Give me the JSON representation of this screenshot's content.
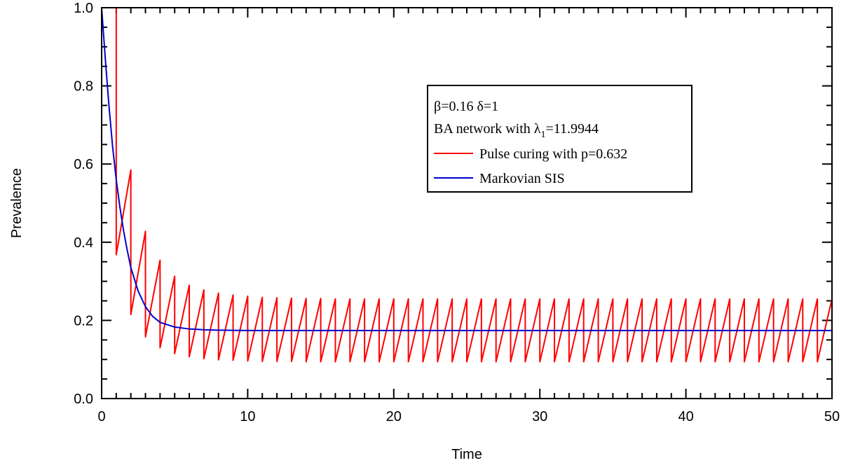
{
  "chart_data": {
    "type": "line",
    "xlabel": "Time",
    "ylabel": "Prevalence",
    "xlim": [
      0,
      50
    ],
    "ylim": [
      0,
      1
    ],
    "x_ticks": [
      {
        "value": 0,
        "label": "0"
      },
      {
        "value": 10,
        "label": "10"
      },
      {
        "value": 20,
        "label": "20"
      },
      {
        "value": 30,
        "label": "30"
      },
      {
        "value": 40,
        "label": "40"
      },
      {
        "value": 50,
        "label": "50"
      }
    ],
    "y_ticks": [
      {
        "value": 0.0,
        "label": "0.0"
      },
      {
        "value": 0.2,
        "label": "0.2"
      },
      {
        "value": 0.4,
        "label": "0.4"
      },
      {
        "value": 0.6,
        "label": "0.6"
      },
      {
        "value": 0.8,
        "label": "0.8"
      },
      {
        "value": 1.0,
        "label": "1.0"
      }
    ],
    "legend": {
      "position": "upper-right",
      "header_line1": {
        "beta_symbol": "β",
        "beta_text": "=0.16 ",
        "delta_symbol": "δ",
        "delta_text": "=1"
      },
      "header_line2": {
        "prefix": "BA network with ",
        "lambda_symbol": "λ",
        "lambda_subscript": "1",
        "suffix": "=11.9944"
      }
    },
    "series": [
      {
        "name": "Pulse curing with p=0.632",
        "color": "#ff0000",
        "note_points": "x,y pairs; vertical drops at integer times",
        "points": [
          [
            0,
            1.0
          ],
          [
            1,
            1.0
          ],
          [
            1,
            0.368
          ],
          [
            2,
            0.585
          ],
          [
            2,
            0.215
          ],
          [
            3,
            0.428
          ],
          [
            3,
            0.158
          ],
          [
            4,
            0.354
          ],
          [
            4,
            0.13
          ],
          [
            5,
            0.313
          ],
          [
            5,
            0.115
          ],
          [
            6,
            0.29
          ],
          [
            6,
            0.107
          ],
          [
            7,
            0.278
          ],
          [
            7,
            0.102
          ],
          [
            8,
            0.27
          ],
          [
            8,
            0.099
          ],
          [
            9,
            0.265
          ],
          [
            9,
            0.098
          ],
          [
            10,
            0.262
          ],
          [
            10,
            0.096
          ],
          [
            11,
            0.259
          ],
          [
            11,
            0.095
          ],
          [
            12,
            0.258
          ],
          [
            12,
            0.095
          ],
          [
            13,
            0.257
          ],
          [
            13,
            0.095
          ],
          [
            14,
            0.256
          ],
          [
            14,
            0.094
          ],
          [
            15,
            0.256
          ],
          [
            15,
            0.094
          ],
          [
            16,
            0.255
          ],
          [
            16,
            0.094
          ],
          [
            17,
            0.255
          ],
          [
            17,
            0.094
          ],
          [
            18,
            0.255
          ],
          [
            18,
            0.094
          ],
          [
            19,
            0.255
          ],
          [
            19,
            0.094
          ],
          [
            20,
            0.255
          ],
          [
            20,
            0.094
          ],
          [
            21,
            0.255
          ],
          [
            21,
            0.094
          ],
          [
            22,
            0.255
          ],
          [
            22,
            0.094
          ],
          [
            23,
            0.255
          ],
          [
            23,
            0.094
          ],
          [
            24,
            0.255
          ],
          [
            24,
            0.094
          ],
          [
            25,
            0.255
          ],
          [
            25,
            0.094
          ],
          [
            26,
            0.255
          ],
          [
            26,
            0.094
          ],
          [
            27,
            0.255
          ],
          [
            27,
            0.094
          ],
          [
            28,
            0.255
          ],
          [
            28,
            0.094
          ],
          [
            29,
            0.255
          ],
          [
            29,
            0.094
          ],
          [
            30,
            0.255
          ],
          [
            30,
            0.094
          ],
          [
            31,
            0.255
          ],
          [
            31,
            0.094
          ],
          [
            32,
            0.255
          ],
          [
            32,
            0.094
          ],
          [
            33,
            0.255
          ],
          [
            33,
            0.094
          ],
          [
            34,
            0.255
          ],
          [
            34,
            0.094
          ],
          [
            35,
            0.255
          ],
          [
            35,
            0.094
          ],
          [
            36,
            0.255
          ],
          [
            36,
            0.094
          ],
          [
            37,
            0.255
          ],
          [
            37,
            0.094
          ],
          [
            38,
            0.255
          ],
          [
            38,
            0.094
          ],
          [
            39,
            0.255
          ],
          [
            39,
            0.094
          ],
          [
            40,
            0.255
          ],
          [
            40,
            0.094
          ],
          [
            41,
            0.255
          ],
          [
            41,
            0.094
          ],
          [
            42,
            0.255
          ],
          [
            42,
            0.094
          ],
          [
            43,
            0.255
          ],
          [
            43,
            0.094
          ],
          [
            44,
            0.255
          ],
          [
            44,
            0.094
          ],
          [
            45,
            0.255
          ],
          [
            45,
            0.094
          ],
          [
            46,
            0.255
          ],
          [
            46,
            0.094
          ],
          [
            47,
            0.255
          ],
          [
            47,
            0.094
          ],
          [
            48,
            0.255
          ],
          [
            48,
            0.094
          ],
          [
            49,
            0.255
          ],
          [
            49,
            0.094
          ],
          [
            50,
            0.255
          ]
        ]
      },
      {
        "name": "Markovian SIS",
        "color": "#0000cc",
        "points": [
          [
            0,
            1.0
          ],
          [
            0.25,
            0.87
          ],
          [
            0.5,
            0.75
          ],
          [
            0.75,
            0.645
          ],
          [
            1,
            0.56
          ],
          [
            1.25,
            0.49
          ],
          [
            1.5,
            0.43
          ],
          [
            1.75,
            0.38
          ],
          [
            2,
            0.335
          ],
          [
            2.5,
            0.275
          ],
          [
            3,
            0.235
          ],
          [
            3.5,
            0.21
          ],
          [
            4,
            0.195
          ],
          [
            5,
            0.183
          ],
          [
            6,
            0.178
          ],
          [
            7,
            0.176
          ],
          [
            8,
            0.175
          ],
          [
            10,
            0.174
          ],
          [
            15,
            0.174
          ],
          [
            20,
            0.174
          ],
          [
            30,
            0.174
          ],
          [
            40,
            0.174
          ],
          [
            50,
            0.174
          ]
        ]
      }
    ]
  }
}
